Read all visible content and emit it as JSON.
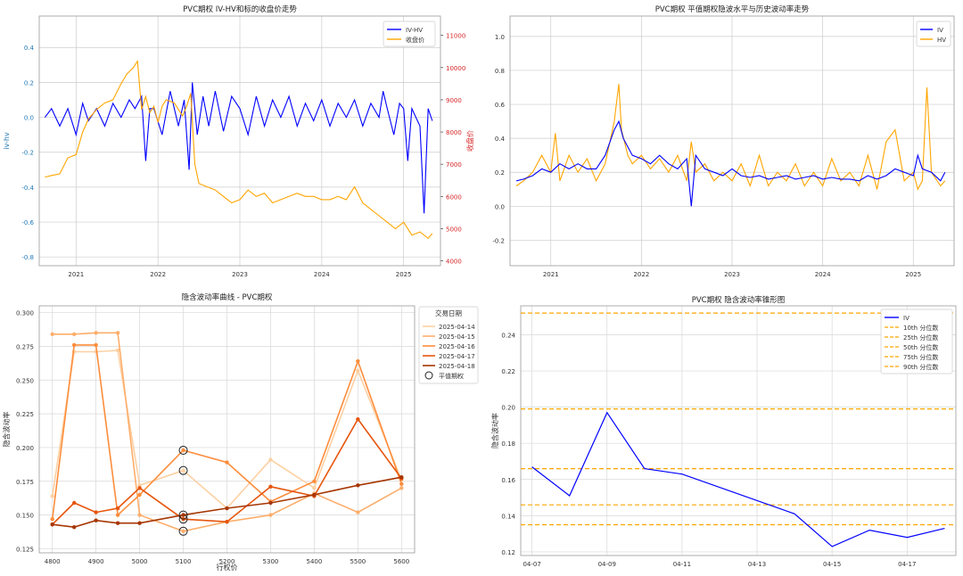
{
  "chart_data": [
    {
      "id": "c1",
      "type": "line",
      "title": "PVC期权 IV-HV和标的收盘价走势",
      "xlabel": "",
      "ylabel": "iv-hv",
      "ylabel_right": "收盘价",
      "colors": {
        "left_axis": "#1f77b4",
        "right_axis": "#d62728"
      },
      "x_ticks": [
        "2021",
        "2022",
        "2023",
        "2024",
        "2025"
      ],
      "x_tick_values": [
        2021.0,
        2022.0,
        2023.0,
        2024.0,
        2025.0
      ],
      "xlim": [
        2020.55,
        2025.45
      ],
      "ylim": [
        -0.85,
        0.58
      ],
      "y_ticks": [
        -0.8,
        -0.6,
        -0.4,
        -0.2,
        0.0,
        0.2,
        0.4
      ],
      "y_tick_labels": [
        "-0.8",
        "-0.6",
        "-0.4",
        "-0.2",
        "0.0",
        "0.2",
        "0.4"
      ],
      "ylim_right": [
        3850,
        11600
      ],
      "y_ticks_right": [
        4000,
        5000,
        6000,
        7000,
        8000,
        9000,
        10000,
        11000
      ],
      "y_tick_labels_right": [
        "4000",
        "5000",
        "6000",
        "7000",
        "8000",
        "9000",
        "10000",
        "11000"
      ],
      "legend_position": "top-right",
      "series": [
        {
          "name": "IV-HV",
          "axis": "left",
          "color": "#0000ff",
          "x": [
            2020.62,
            2020.7,
            2020.8,
            2020.9,
            2021.0,
            2021.08,
            2021.15,
            2021.25,
            2021.35,
            2021.45,
            2021.55,
            2021.65,
            2021.72,
            2021.8,
            2021.85,
            2021.9,
            2021.95,
            2022.05,
            2022.15,
            2022.25,
            2022.32,
            2022.38,
            2022.42,
            2022.48,
            2022.55,
            2022.62,
            2022.7,
            2022.8,
            2022.9,
            2023.0,
            2023.1,
            2023.2,
            2023.3,
            2023.4,
            2023.5,
            2023.6,
            2023.7,
            2023.8,
            2023.9,
            2024.0,
            2024.1,
            2024.2,
            2024.3,
            2024.4,
            2024.5,
            2024.6,
            2024.7,
            2024.75,
            2024.8,
            2024.88,
            2024.95,
            2025.0,
            2025.05,
            2025.1,
            2025.15,
            2025.2,
            2025.25,
            2025.3,
            2025.35
          ],
          "values": [
            0.0,
            0.05,
            -0.05,
            0.05,
            -0.1,
            0.08,
            -0.02,
            0.05,
            -0.05,
            0.08,
            0.0,
            0.1,
            0.05,
            0.12,
            -0.25,
            0.05,
            0.05,
            -0.1,
            0.15,
            -0.05,
            0.1,
            -0.3,
            0.2,
            -0.1,
            0.12,
            -0.05,
            0.15,
            -0.08,
            0.12,
            0.05,
            -0.1,
            0.12,
            -0.05,
            0.1,
            0.0,
            0.12,
            -0.05,
            0.08,
            -0.02,
            0.1,
            -0.05,
            0.08,
            0.0,
            0.1,
            -0.05,
            0.08,
            0.0,
            0.15,
            0.05,
            -0.1,
            0.08,
            0.05,
            -0.25,
            0.05,
            0.0,
            -0.05,
            -0.55,
            0.05,
            -0.02
          ]
        },
        {
          "name": "收盘价",
          "axis": "right",
          "color": "#ffa500",
          "x": [
            2020.62,
            2020.7,
            2020.8,
            2020.9,
            2021.0,
            2021.08,
            2021.15,
            2021.25,
            2021.35,
            2021.45,
            2021.55,
            2021.62,
            2021.7,
            2021.75,
            2021.8,
            2021.85,
            2021.9,
            2021.95,
            2022.0,
            2022.05,
            2022.1,
            2022.2,
            2022.3,
            2022.35,
            2022.4,
            2022.45,
            2022.5,
            2022.6,
            2022.7,
            2022.8,
            2022.9,
            2023.0,
            2023.1,
            2023.2,
            2023.3,
            2023.4,
            2023.5,
            2023.6,
            2023.7,
            2023.8,
            2023.9,
            2024.0,
            2024.1,
            2024.2,
            2024.3,
            2024.4,
            2024.5,
            2024.6,
            2024.7,
            2024.8,
            2024.9,
            2025.0,
            2025.1,
            2025.2,
            2025.3,
            2025.35
          ],
          "values": [
            6600,
            6650,
            6700,
            7200,
            7300,
            8000,
            8400,
            8700,
            8900,
            9000,
            9500,
            9800,
            10000,
            10200,
            8700,
            9100,
            8600,
            8800,
            8300,
            8800,
            9000,
            8900,
            8500,
            8800,
            9200,
            7000,
            6400,
            6300,
            6200,
            6000,
            5800,
            5900,
            6200,
            6000,
            6100,
            5800,
            5900,
            6000,
            6100,
            6000,
            6000,
            5900,
            5900,
            6000,
            5900,
            6300,
            5800,
            5600,
            5400,
            5200,
            5000,
            5200,
            4800,
            4900,
            4700,
            4850
          ]
        }
      ]
    },
    {
      "id": "c2",
      "type": "line",
      "title": "PVC期权 平值期权隐波水平与历史波动率走势",
      "xlabel": "",
      "ylabel": "",
      "x_ticks": [
        "2021",
        "2022",
        "2023",
        "2024",
        "2025"
      ],
      "x_tick_values": [
        2021.0,
        2022.0,
        2023.0,
        2024.0,
        2025.0
      ],
      "xlim": [
        2020.55,
        2025.45
      ],
      "ylim": [
        -0.35,
        1.12
      ],
      "y_ticks": [
        -0.2,
        0.0,
        0.2,
        0.4,
        0.6,
        0.8,
        1.0
      ],
      "y_tick_labels": [
        "-0.2",
        "0.0",
        "0.2",
        "0.4",
        "0.6",
        "0.8",
        "1.0"
      ],
      "legend_position": "top-right",
      "series": [
        {
          "name": "IV",
          "color": "#0000ff",
          "x": [
            2020.62,
            2020.7,
            2020.8,
            2020.9,
            2021.0,
            2021.1,
            2021.2,
            2021.3,
            2021.4,
            2021.5,
            2021.6,
            2021.7,
            2021.75,
            2021.8,
            2021.85,
            2021.9,
            2022.0,
            2022.1,
            2022.2,
            2022.3,
            2022.4,
            2022.5,
            2022.55,
            2022.6,
            2022.7,
            2022.8,
            2022.9,
            2023.0,
            2023.1,
            2023.2,
            2023.3,
            2023.4,
            2023.5,
            2023.6,
            2023.7,
            2023.8,
            2023.9,
            2024.0,
            2024.1,
            2024.2,
            2024.3,
            2024.4,
            2024.5,
            2024.6,
            2024.7,
            2024.8,
            2024.9,
            2025.0,
            2025.05,
            2025.1,
            2025.2,
            2025.3,
            2025.35
          ],
          "values": [
            0.15,
            0.16,
            0.18,
            0.22,
            0.2,
            0.25,
            0.22,
            0.25,
            0.22,
            0.22,
            0.3,
            0.45,
            0.5,
            0.4,
            0.35,
            0.3,
            0.28,
            0.25,
            0.3,
            0.25,
            0.22,
            0.28,
            0.0,
            0.3,
            0.22,
            0.2,
            0.18,
            0.22,
            0.18,
            0.17,
            0.18,
            0.16,
            0.17,
            0.18,
            0.16,
            0.17,
            0.18,
            0.16,
            0.17,
            0.16,
            0.16,
            0.15,
            0.18,
            0.16,
            0.18,
            0.22,
            0.2,
            0.18,
            0.3,
            0.22,
            0.2,
            0.15,
            0.2
          ]
        },
        {
          "name": "HV",
          "color": "#ffa500",
          "x": [
            2020.62,
            2020.7,
            2020.8,
            2020.9,
            2021.0,
            2021.05,
            2021.1,
            2021.2,
            2021.3,
            2021.4,
            2021.5,
            2021.6,
            2021.7,
            2021.75,
            2021.78,
            2021.85,
            2021.9,
            2022.0,
            2022.1,
            2022.2,
            2022.3,
            2022.4,
            2022.5,
            2022.55,
            2022.6,
            2022.7,
            2022.8,
            2022.9,
            2023.0,
            2023.1,
            2023.2,
            2023.3,
            2023.4,
            2023.5,
            2023.6,
            2023.7,
            2023.8,
            2023.9,
            2024.0,
            2024.1,
            2024.2,
            2024.3,
            2024.4,
            2024.5,
            2024.6,
            2024.7,
            2024.8,
            2024.9,
            2025.0,
            2025.05,
            2025.1,
            2025.15,
            2025.2,
            2025.3,
            2025.35
          ],
          "values": [
            0.12,
            0.15,
            0.2,
            0.3,
            0.2,
            0.43,
            0.15,
            0.3,
            0.2,
            0.28,
            0.15,
            0.25,
            0.5,
            0.72,
            0.45,
            0.3,
            0.25,
            0.3,
            0.22,
            0.28,
            0.2,
            0.3,
            0.15,
            0.38,
            0.2,
            0.25,
            0.15,
            0.2,
            0.15,
            0.25,
            0.12,
            0.3,
            0.12,
            0.2,
            0.15,
            0.25,
            0.12,
            0.2,
            0.12,
            0.28,
            0.15,
            0.2,
            0.12,
            0.3,
            0.1,
            0.38,
            0.45,
            0.15,
            0.2,
            0.1,
            0.15,
            0.7,
            0.2,
            0.12,
            0.15
          ]
        }
      ]
    },
    {
      "id": "c3",
      "type": "line",
      "title": "隐含波动率曲线 - PVC期权",
      "xlabel": "行权价",
      "ylabel": "隐含波动率",
      "categories": [
        4800,
        4850,
        4900,
        4950,
        5000,
        5100,
        5200,
        5300,
        5400,
        5500,
        5600
      ],
      "x_ticks": [
        4800,
        4900,
        5000,
        5100,
        5200,
        5300,
        5400,
        5500,
        5600
      ],
      "x_tick_labels": [
        "4800",
        "4900",
        "5000",
        "5100",
        "5200",
        "5300",
        "5400",
        "5500",
        "5600"
      ],
      "xlim": [
        4770,
        5630
      ],
      "ylim": [
        0.122,
        0.305
      ],
      "y_ticks": [
        0.125,
        0.15,
        0.175,
        0.2,
        0.225,
        0.25,
        0.275,
        0.3
      ],
      "y_tick_labels": [
        "0.125",
        "0.150",
        "0.175",
        "0.200",
        "0.225",
        "0.250",
        "0.275",
        "0.300"
      ],
      "legend_title": "交易日期",
      "legend_position": "top-right",
      "atm_label": "平值期权",
      "atm_strike": 5100,
      "series": [
        {
          "name": "2025-04-14",
          "color": "#fdd0a2",
          "values": [
            0.164,
            0.271,
            0.271,
            0.272,
            0.172,
            0.183,
            0.155,
            0.191,
            0.17,
            0.257,
            0.176
          ]
        },
        {
          "name": "2025-04-15",
          "color": "#fdae6b",
          "values": [
            0.284,
            0.284,
            0.285,
            0.285,
            0.15,
            0.138,
            0.145,
            0.15,
            0.166,
            0.152,
            0.17
          ]
        },
        {
          "name": "2025-04-16",
          "color": "#fd8d3c",
          "values": [
            0.147,
            0.276,
            0.276,
            0.15,
            0.165,
            0.198,
            0.189,
            0.16,
            0.175,
            0.264,
            0.173
          ]
        },
        {
          "name": "2025-04-17",
          "color": "#e6550d",
          "values": [
            0.143,
            0.159,
            0.152,
            0.155,
            0.17,
            0.147,
            0.145,
            0.171,
            0.164,
            0.221,
            0.177
          ]
        },
        {
          "name": "2025-04-18",
          "color": "#a63603",
          "values": [
            0.143,
            0.141,
            0.146,
            0.144,
            0.144,
            0.15,
            0.155,
            0.159,
            0.165,
            0.172,
            0.178
          ]
        }
      ]
    },
    {
      "id": "c4",
      "type": "line",
      "title": "PVC期权 隐含波动率锥形图",
      "xlabel": "",
      "ylabel": "隐含波动率",
      "x_ticks": [
        "04-07",
        "04-09",
        "04-11",
        "04-13",
        "04-15",
        "04-17"
      ],
      "x_tick_values": [
        0,
        2,
        4,
        6,
        8,
        10
      ],
      "xlim": [
        -0.3,
        11.3
      ],
      "ylim": [
        0.118,
        0.256
      ],
      "y_ticks": [
        0.12,
        0.14,
        0.16,
        0.18,
        0.2,
        0.22,
        0.24
      ],
      "y_tick_labels": [
        "0.12",
        "0.14",
        "0.16",
        "0.18",
        "0.20",
        "0.22",
        "0.24"
      ],
      "legend_position": "top-right",
      "series": [
        {
          "name": "IV",
          "color": "#0000ff",
          "x": [
            0,
            1,
            2,
            3,
            4,
            7,
            8,
            9,
            10,
            11
          ],
          "values": [
            0.167,
            0.151,
            0.197,
            0.166,
            0.163,
            0.141,
            0.123,
            0.132,
            0.128,
            0.133
          ]
        }
      ],
      "percentiles": [
        {
          "name": "10th 分位数",
          "value": 0.135
        },
        {
          "name": "25th 分位数",
          "value": 0.146
        },
        {
          "name": "50th 分位数",
          "value": 0.166
        },
        {
          "name": "75th 分位数",
          "value": 0.199
        },
        {
          "name": "90th 分位数",
          "value": 0.252
        }
      ],
      "percentile_color": "#ffa500"
    }
  ]
}
